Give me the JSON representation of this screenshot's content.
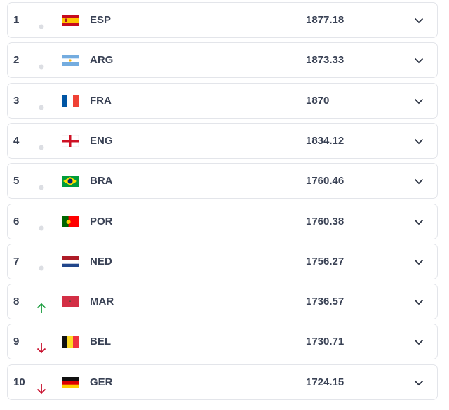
{
  "table": {
    "rows": [
      {
        "rank": 1,
        "movement": "none",
        "team": "ESP",
        "points": 1877.18
      },
      {
        "rank": 2,
        "movement": "none",
        "team": "ARG",
        "points": 1873.33
      },
      {
        "rank": 3,
        "movement": "none",
        "team": "FRA",
        "points": 1870
      },
      {
        "rank": 4,
        "movement": "none",
        "team": "ENG",
        "points": 1834.12
      },
      {
        "rank": 5,
        "movement": "none",
        "team": "BRA",
        "points": 1760.46
      },
      {
        "rank": 6,
        "movement": "none",
        "team": "POR",
        "points": 1760.38
      },
      {
        "rank": 7,
        "movement": "none",
        "team": "NED",
        "points": 1756.27
      },
      {
        "rank": 8,
        "movement": "up",
        "team": "MAR",
        "points": 1736.57
      },
      {
        "rank": 9,
        "movement": "down",
        "team": "BEL",
        "points": 1730.71
      },
      {
        "rank": 10,
        "movement": "down",
        "team": "GER",
        "points": 1724.15
      }
    ]
  }
}
